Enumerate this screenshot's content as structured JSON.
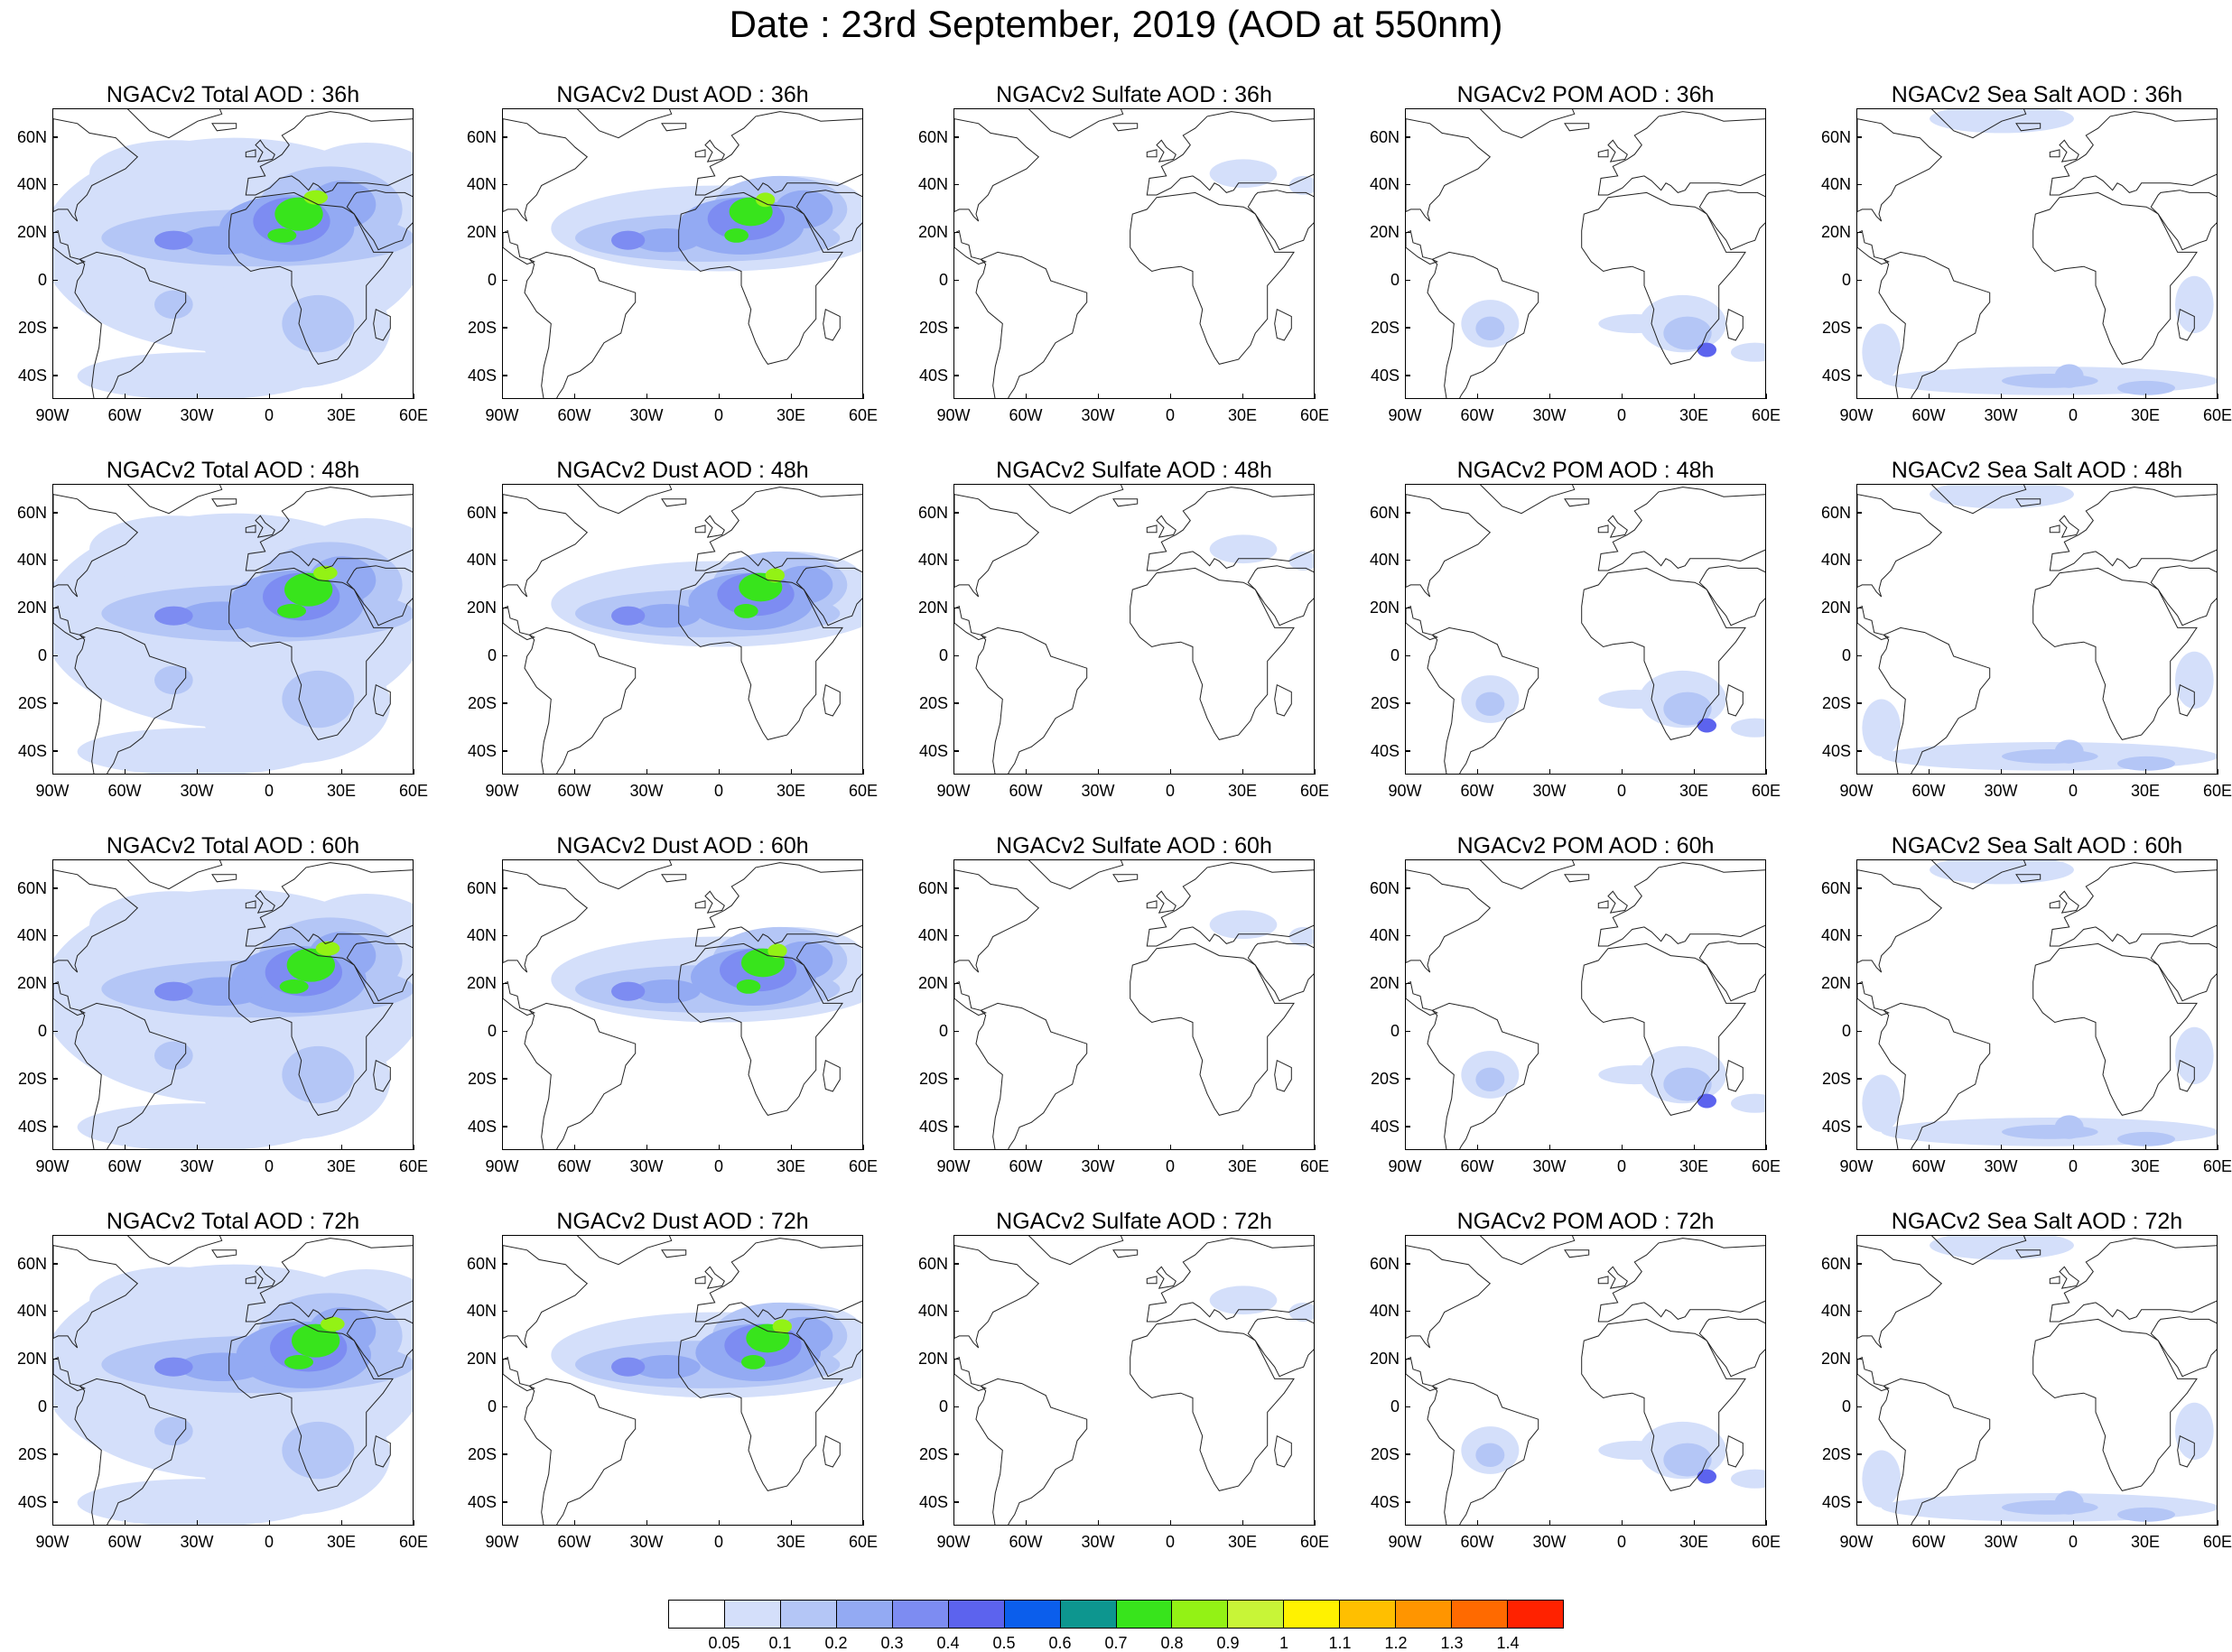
{
  "title": "Date : 23rd September, 2019 (AOD at 550nm)",
  "axes": {
    "x_labels": [
      "90W",
      "60W",
      "30W",
      "0",
      "30E",
      "60E"
    ],
    "y_labels": [
      "60N",
      "40N",
      "20N",
      "0",
      "20S",
      "40S"
    ],
    "lon_range": [
      -90,
      60
    ],
    "lat_range": [
      -50,
      72
    ]
  },
  "colors": {
    "land_outline": "#222222",
    "colorbar": [
      "#ffffff",
      "#d4dffa",
      "#b4c6f6",
      "#93aaf3",
      "#7d8cf2",
      "#5c63ee",
      "#0b5eec",
      "#0d968f",
      "#38e41c",
      "#93f215",
      "#c8f537",
      "#fff200",
      "#ffbf00",
      "#ff9500",
      "#ff6a00",
      "#ff2200"
    ]
  },
  "icons": [
    "map-panel",
    "colorbar"
  ],
  "colorbar": {
    "labels": [
      "0.05",
      "0.1",
      "0.2",
      "0.3",
      "0.4",
      "0.5",
      "0.6",
      "0.7",
      "0.8",
      "0.9",
      "1",
      "1.1",
      "1.2",
      "1.3",
      "1.4"
    ]
  },
  "panels": [
    {
      "title": "NGACv2 Total AOD : 36h",
      "species": "total"
    },
    {
      "title": "NGACv2 Dust AOD : 36h",
      "species": "dust"
    },
    {
      "title": "NGACv2 Sulfate AOD : 36h",
      "species": "sulfate"
    },
    {
      "title": "NGACv2 POM AOD : 36h",
      "species": "pom"
    },
    {
      "title": "NGACv2 Sea Salt AOD : 36h",
      "species": "seasalt"
    },
    {
      "title": "NGACv2 Total AOD : 48h",
      "species": "total"
    },
    {
      "title": "NGACv2 Dust AOD : 48h",
      "species": "dust"
    },
    {
      "title": "NGACv2 Sulfate AOD : 48h",
      "species": "sulfate"
    },
    {
      "title": "NGACv2 POM AOD : 48h",
      "species": "pom"
    },
    {
      "title": "NGACv2 Sea Salt AOD : 48h",
      "species": "seasalt"
    },
    {
      "title": "NGACv2 Total AOD : 60h",
      "species": "total"
    },
    {
      "title": "NGACv2 Dust AOD : 60h",
      "species": "dust"
    },
    {
      "title": "NGACv2 Sulfate AOD : 60h",
      "species": "sulfate"
    },
    {
      "title": "NGACv2 POM AOD : 60h",
      "species": "pom"
    },
    {
      "title": "NGACv2 Sea Salt AOD : 60h",
      "species": "seasalt"
    },
    {
      "title": "NGACv2 Total AOD : 72h",
      "species": "total"
    },
    {
      "title": "NGACv2 Dust AOD : 72h",
      "species": "dust"
    },
    {
      "title": "NGACv2 Sulfate AOD : 72h",
      "species": "sulfate"
    },
    {
      "title": "NGACv2 POM AOD : 72h",
      "species": "pom"
    },
    {
      "title": "NGACv2 Sea Salt  AOD : 72h",
      "species": "seasalt"
    }
  ]
}
